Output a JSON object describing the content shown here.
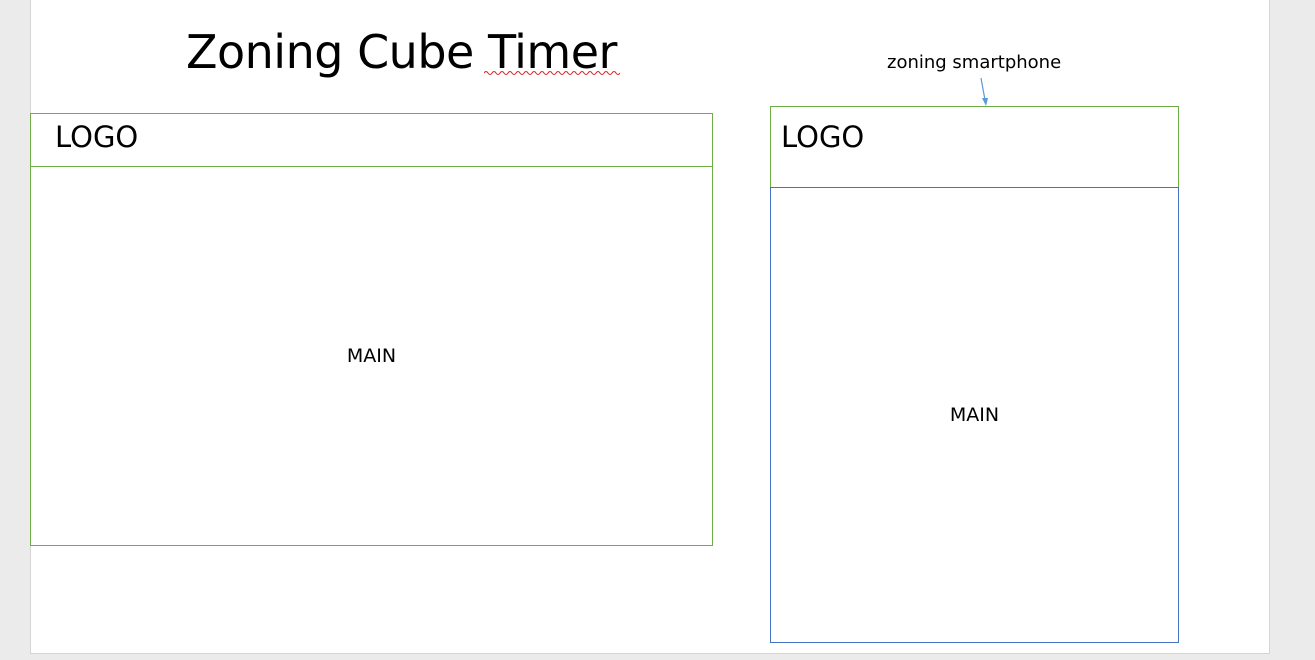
{
  "title": "Zoning Cube Timer",
  "desktop": {
    "logo_label": "LOGO",
    "main_label": "MAIN"
  },
  "smartphone": {
    "callout_label": "zoning smartphone",
    "logo_label": "LOGO",
    "main_label": "MAIN"
  },
  "colors": {
    "header_border": "#70ad47",
    "phone_main_border": "#4472c4",
    "arrow": "#5b9bd5",
    "spellcheck_underline": "#e02020"
  }
}
